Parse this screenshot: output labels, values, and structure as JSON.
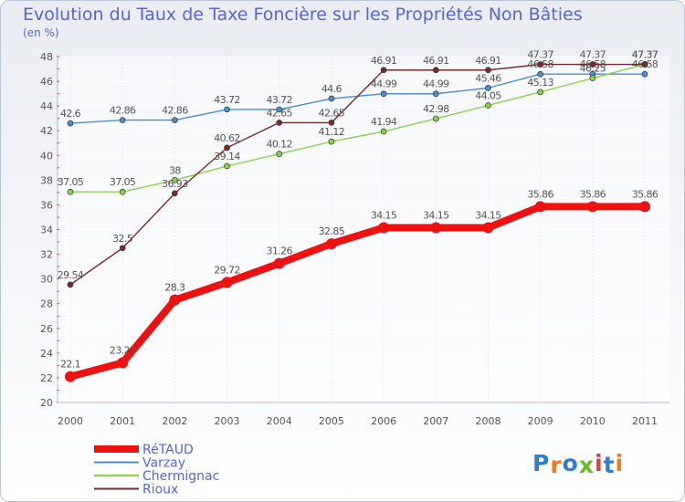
{
  "chart_data": {
    "type": "line",
    "title": "Evolution du Taux de Taxe Foncière sur les Propriétés Non Bâties",
    "ylabel": "(en %)",
    "xlabel": "",
    "ylim": [
      20,
      48
    ],
    "y_ticks": [
      20,
      22,
      24,
      26,
      28,
      30,
      32,
      34,
      36,
      38,
      40,
      42,
      44,
      46,
      48
    ],
    "grid": true,
    "categories": [
      "2000",
      "2001",
      "2002",
      "2003",
      "2004",
      "2005",
      "2006",
      "2007",
      "2008",
      "2009",
      "2010",
      "2011"
    ],
    "series": [
      {
        "name": "Varzay",
        "color": "#4a8fd4",
        "values": [
          42.6,
          42.86,
          42.86,
          43.72,
          43.72,
          44.6,
          44.99,
          44.99,
          45.46,
          46.58,
          46.58,
          46.58
        ],
        "labels": [
          "42.6",
          "42.86",
          "42.86",
          "43.72",
          "43.72",
          "44.6",
          "44.99",
          "44.99",
          "45.46",
          "46.58",
          "46.58",
          "46.58"
        ]
      },
      {
        "name": "Chermignac",
        "color": "#8ad24a",
        "values": [
          37.05,
          37.05,
          38,
          39.14,
          40.12,
          41.12,
          41.94,
          42.98,
          44.05,
          45.13,
          46.25,
          47.37
        ],
        "labels": [
          "37.05",
          "37.05",
          "38",
          "39.14",
          "40.12",
          "41.12",
          "41.94",
          "42.98",
          "44.05",
          "45.13",
          "46.25",
          "47.37"
        ]
      },
      {
        "name": "Rioux",
        "color": "#7a2a2a",
        "values": [
          29.54,
          32.5,
          36.93,
          40.62,
          42.65,
          42.65,
          46.91,
          46.91,
          46.91,
          47.37,
          47.37,
          47.37
        ],
        "labels": [
          "29.54",
          "32.5",
          "36.93",
          "40.62",
          "42.65",
          "42.65",
          "46.91",
          "46.91",
          "46.91",
          "47.37",
          "47.37",
          "47.37"
        ]
      },
      {
        "name": "RéTAUD",
        "color": "#ee1111",
        "emphasis": true,
        "values": [
          22.1,
          23.21,
          28.3,
          29.72,
          31.26,
          32.85,
          34.15,
          34.15,
          34.15,
          35.86,
          35.86,
          35.86
        ],
        "labels": [
          "22.1",
          "23.21",
          "28.3",
          "29.72",
          "31.26",
          "32.85",
          "34.15",
          "34.15",
          "34.15",
          "35.86",
          "35.86",
          "35.86"
        ]
      }
    ],
    "legend": [
      "RéTAUD",
      "Varzay",
      "Chermignac",
      "Rioux"
    ],
    "legend_placement": "bottom-left"
  },
  "logo": {
    "text": "Proxiti",
    "colors": [
      "#2f7fd0",
      "#f07a18",
      "#2f7fd0",
      "#6ab82e",
      "#e83a3a",
      "#2f7fd0",
      "#f07a18"
    ]
  }
}
